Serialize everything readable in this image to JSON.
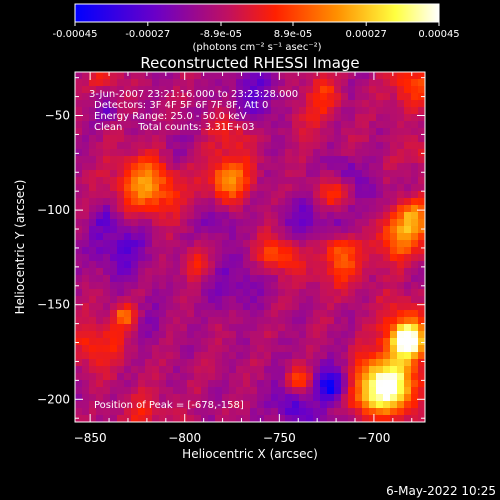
{
  "colorbar": {
    "ticks": [
      "-0.00045",
      "-0.00027",
      "-8.9e-05",
      "8.9e-05",
      "0.00027",
      "0.00045"
    ],
    "tick_values": [
      -0.00045,
      -0.00027,
      -8.9e-05,
      8.9e-05,
      0.00027,
      0.00045
    ],
    "range": [
      -0.00045,
      0.00045
    ],
    "unit_label": "(photons cm⁻² s⁻¹ asec⁻²)",
    "colors": [
      "#0000ff",
      "#6a00c8",
      "#c01060",
      "#ff2000",
      "#ff9000",
      "#ffff40",
      "#ffffff"
    ]
  },
  "plot": {
    "title": "Reconstructed RHESSI Image",
    "annotations": [
      "3-Jun-2007 23:21:16.000 to 23:23:28.000",
      "Detectors: 3F 4F 5F 6F 7F 8F, Att 0",
      "Energy Range: 25.0 - 50.0 keV",
      "Clean     Total counts: 3.31E+03"
    ],
    "peak_label": "Position of Peak = [-678,-158]"
  },
  "chart_data": {
    "type": "heatmap",
    "title": "Reconstructed RHESSI Image",
    "xlabel": "Heliocentric X (arcsec)",
    "ylabel": "Heliocentric Y (arcsec)",
    "xlim": [
      -858,
      -673
    ],
    "ylim": [
      -212,
      -27
    ],
    "xticks": [
      -850,
      -800,
      -750,
      -700
    ],
    "yticks": [
      -50,
      -100,
      -150,
      -200
    ],
    "zlim": [
      -0.00045,
      0.00045
    ],
    "zunit": "photons cm-2 s-1 asec-2",
    "peak_position": [
      -678,
      -158
    ],
    "grid": false
  },
  "footer": {
    "timestamp": "6-May-2022 10:25"
  }
}
